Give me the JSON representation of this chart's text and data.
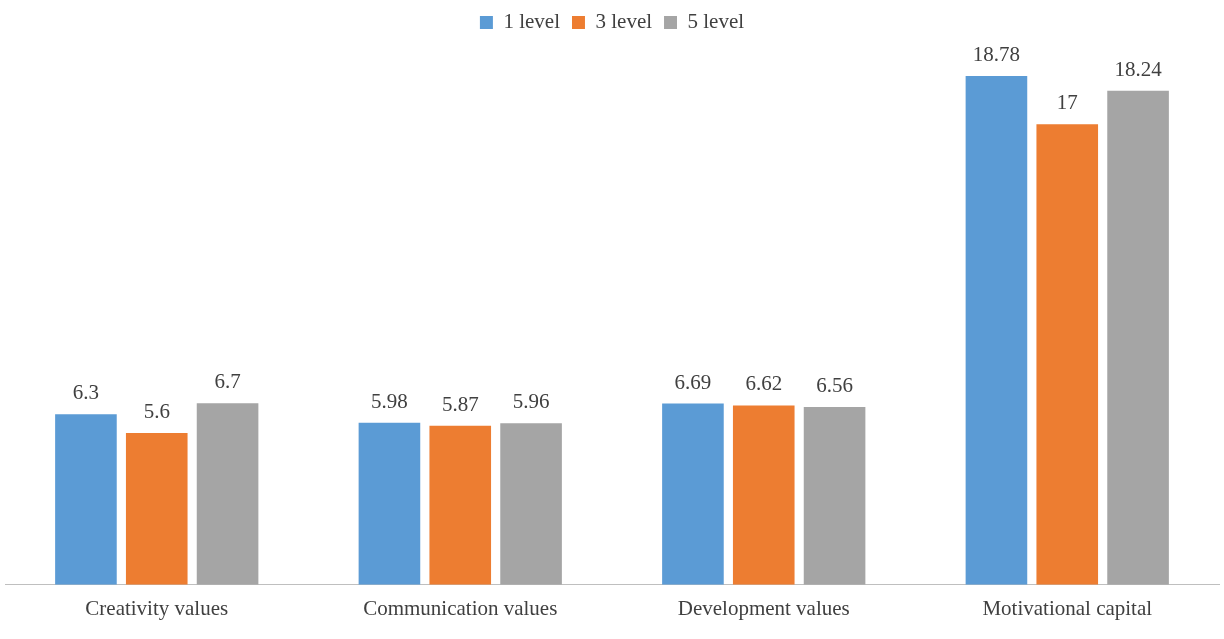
{
  "chart_data": {
    "type": "bar",
    "categories": [
      "Creativity values",
      "Communication values",
      "Development values",
      "Motivational capital"
    ],
    "series": [
      {
        "name": "1 level",
        "color": "#5b9bd5",
        "values": [
          6.3,
          5.98,
          6.69,
          18.78
        ]
      },
      {
        "name": "3 level",
        "color": "#ed7d31",
        "values": [
          5.6,
          5.87,
          6.62,
          17
        ]
      },
      {
        "name": "5 level",
        "color": "#a5a5a5",
        "values": [
          6.7,
          5.96,
          6.56,
          18.24
        ]
      }
    ],
    "data_labels": true,
    "legend": "top",
    "grid": false
  }
}
